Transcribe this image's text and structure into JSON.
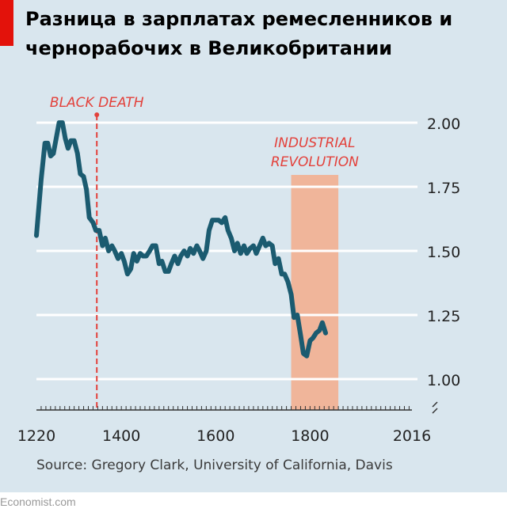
{
  "title": "Разница в зарплатах ремесленников и чернорабочих в Великобритании",
  "source": "Source: Gregory Clark, University of California, Davis",
  "footer": "Economist.com",
  "colors": {
    "background": "#d9e6ee",
    "line": "#1b5b70",
    "accent_red": "#e3120b",
    "annotation_red": "#e3413b",
    "shade": "#f0b59a",
    "grid": "#ffffff"
  },
  "chart_data": {
    "type": "line",
    "title": "Разница в зарплатах ремесленников и чернорабочих в Великобритании",
    "xlabel": "",
    "ylabel": "",
    "xlim": [
      1220,
      2016
    ],
    "ylim": [
      0.9,
      2.0
    ],
    "x_tick_labels": [
      "1220",
      "1400",
      "1600",
      "1800",
      "2016"
    ],
    "y_tick_labels": [
      "2.00",
      "1.75",
      "1.50",
      "1.25",
      "1.00"
    ],
    "y_ticks": [
      2.0,
      1.75,
      1.5,
      1.25,
      1.0
    ],
    "axis_break": "y-axis break below 1.00",
    "grid": true,
    "annotations": [
      {
        "kind": "vertical-dashed-line",
        "x": 1348,
        "label": "BLACK DEATH"
      },
      {
        "kind": "shaded-band",
        "x_start": 1760,
        "x_end": 1860,
        "label_lines": [
          "INDUSTRIAL",
          "REVOLUTION"
        ]
      }
    ],
    "series": [
      {
        "points": [
          [
            1220,
            1.56
          ],
          [
            1230,
            1.78
          ],
          [
            1238,
            1.92
          ],
          [
            1244,
            1.92
          ],
          [
            1250,
            1.87
          ],
          [
            1256,
            1.88
          ],
          [
            1262,
            1.94
          ],
          [
            1268,
            2.0
          ],
          [
            1275,
            2.0
          ],
          [
            1281,
            1.94
          ],
          [
            1287,
            1.9
          ],
          [
            1293,
            1.93
          ],
          [
            1300,
            1.93
          ],
          [
            1307,
            1.88
          ],
          [
            1313,
            1.8
          ],
          [
            1320,
            1.79
          ],
          [
            1326,
            1.74
          ],
          [
            1332,
            1.63
          ],
          [
            1340,
            1.61
          ],
          [
            1346,
            1.58
          ],
          [
            1353,
            1.58
          ],
          [
            1360,
            1.52
          ],
          [
            1366,
            1.55
          ],
          [
            1373,
            1.5
          ],
          [
            1380,
            1.52
          ],
          [
            1386,
            1.5
          ],
          [
            1393,
            1.47
          ],
          [
            1400,
            1.49
          ],
          [
            1406,
            1.46
          ],
          [
            1413,
            1.41
          ],
          [
            1420,
            1.43
          ],
          [
            1426,
            1.49
          ],
          [
            1433,
            1.46
          ],
          [
            1440,
            1.49
          ],
          [
            1446,
            1.48
          ],
          [
            1453,
            1.48
          ],
          [
            1460,
            1.5
          ],
          [
            1466,
            1.52
          ],
          [
            1473,
            1.52
          ],
          [
            1480,
            1.45
          ],
          [
            1486,
            1.46
          ],
          [
            1493,
            1.42
          ],
          [
            1500,
            1.42
          ],
          [
            1506,
            1.45
          ],
          [
            1513,
            1.48
          ],
          [
            1520,
            1.45
          ],
          [
            1526,
            1.48
          ],
          [
            1533,
            1.5
          ],
          [
            1540,
            1.48
          ],
          [
            1546,
            1.51
          ],
          [
            1553,
            1.49
          ],
          [
            1560,
            1.52
          ],
          [
            1566,
            1.5
          ],
          [
            1573,
            1.47
          ],
          [
            1580,
            1.5
          ],
          [
            1586,
            1.58
          ],
          [
            1593,
            1.62
          ],
          [
            1600,
            1.62
          ],
          [
            1606,
            1.62
          ],
          [
            1613,
            1.61
          ],
          [
            1620,
            1.63
          ],
          [
            1626,
            1.58
          ],
          [
            1633,
            1.55
          ],
          [
            1640,
            1.5
          ],
          [
            1646,
            1.53
          ],
          [
            1653,
            1.49
          ],
          [
            1660,
            1.52
          ],
          [
            1666,
            1.49
          ],
          [
            1673,
            1.51
          ],
          [
            1680,
            1.52
          ],
          [
            1686,
            1.49
          ],
          [
            1693,
            1.52
          ],
          [
            1700,
            1.55
          ],
          [
            1706,
            1.52
          ],
          [
            1713,
            1.53
          ],
          [
            1720,
            1.52
          ],
          [
            1726,
            1.45
          ],
          [
            1733,
            1.47
          ],
          [
            1740,
            1.41
          ],
          [
            1746,
            1.41
          ],
          [
            1753,
            1.38
          ],
          [
            1760,
            1.33
          ],
          [
            1766,
            1.24
          ],
          [
            1773,
            1.25
          ],
          [
            1780,
            1.17
          ],
          [
            1786,
            1.1
          ],
          [
            1793,
            1.09
          ],
          [
            1800,
            1.15
          ],
          [
            1806,
            1.16
          ],
          [
            1813,
            1.18
          ],
          [
            1820,
            1.19
          ],
          [
            1826,
            1.22
          ],
          [
            1833,
            1.18
          ]
        ]
      }
    ]
  }
}
